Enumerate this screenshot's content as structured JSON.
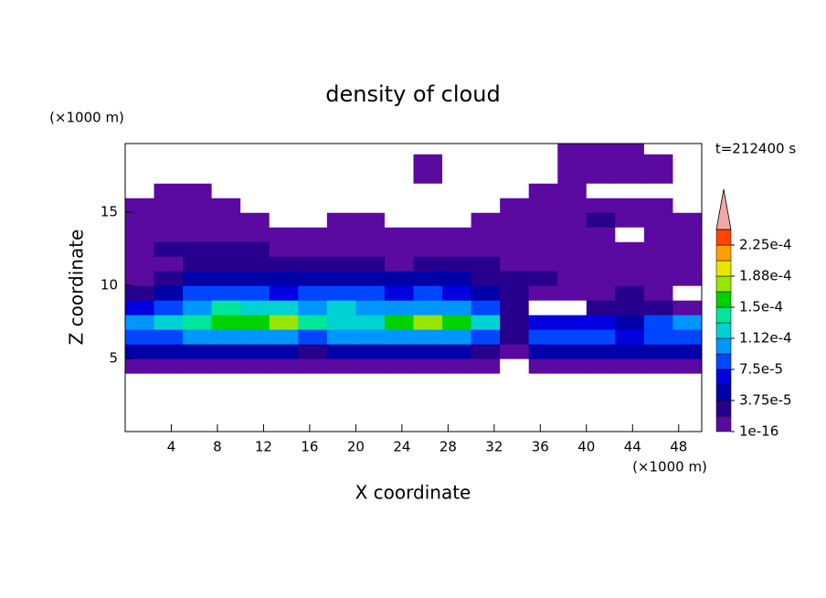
{
  "chart_data": {
    "type": "contour",
    "title": "density of cloud",
    "x_label": "X coordinate",
    "y_label": "Z coordinate",
    "x_unit": "(×1000 m)",
    "y_unit": "(×1000 m)",
    "time_label": "t=212400 s",
    "xlim": [
      0,
      50
    ],
    "ylim": [
      0,
      19.7
    ],
    "xticks": [
      4,
      8,
      12,
      16,
      20,
      24,
      28,
      32,
      36,
      40,
      44,
      48
    ],
    "yticks": [
      5,
      10,
      15
    ],
    "x": [
      1.25,
      3.75,
      6.25,
      8.75,
      11.25,
      13.75,
      16.25,
      18.75,
      21.25,
      23.75,
      26.25,
      28.75,
      31.25,
      33.75,
      36.25,
      38.75,
      41.25,
      43.75,
      46.25,
      48.75
    ],
    "y": [
      0.5,
      1.5,
      2.5,
      3.5,
      4.5,
      5.5,
      6.5,
      7.5,
      8.5,
      9.5,
      10.5,
      11.5,
      12.5,
      13.5,
      14.5,
      15.5,
      16.5,
      17.5,
      18.5,
      19.5
    ],
    "z": [
      [
        0,
        0,
        0,
        0,
        0,
        0,
        0,
        0,
        0,
        0,
        0,
        0,
        0,
        0,
        0,
        0,
        0,
        0,
        0,
        0
      ],
      [
        0,
        0,
        0,
        0,
        0,
        0,
        0,
        0,
        0,
        0,
        0,
        0,
        0,
        0,
        0,
        0,
        0,
        0,
        0,
        0
      ],
      [
        0,
        0,
        0,
        0,
        0,
        0,
        0,
        0,
        0,
        0,
        0,
        0,
        0,
        0,
        0,
        0,
        0,
        0,
        0,
        0
      ],
      [
        0,
        0,
        0,
        0,
        0,
        0,
        0,
        0,
        0,
        0,
        0,
        0,
        0,
        0,
        0,
        0,
        0,
        0,
        0,
        0
      ],
      [
        1e-05,
        1e-05,
        1e-05,
        1e-05,
        1e-05,
        1e-05,
        1e-05,
        1e-05,
        1e-05,
        1e-05,
        1e-05,
        1e-05,
        1e-05,
        0,
        1e-05,
        1e-05,
        1e-05,
        1e-05,
        1e-05,
        1e-05
      ],
      [
        4e-05,
        4e-05,
        4e-05,
        4e-05,
        4e-05,
        4e-05,
        3e-05,
        4e-05,
        4e-05,
        4e-05,
        4e-05,
        4e-05,
        3e-05,
        1e-05,
        4e-05,
        4e-05,
        4e-05,
        4e-05,
        4e-05,
        4e-05
      ],
      [
        8e-05,
        9e-05,
        0.0001,
        0.0001,
        0.0001,
        0.0001,
        8e-05,
        0.0001,
        0.0001,
        0.00011,
        0.0001,
        0.00011,
        8e-05,
        3e-05,
        8e-05,
        9e-05,
        8e-05,
        6e-05,
        8e-05,
        9e-05
      ],
      [
        0.0001,
        0.00012,
        0.00014,
        0.00015,
        0.00016,
        0.00017,
        0.00014,
        0.00013,
        0.00012,
        0.00016,
        0.00018,
        0.00016,
        0.00012,
        2e-05,
        6e-05,
        7e-05,
        6e-05,
        5e-05,
        8e-05,
        0.0001
      ],
      [
        6e-05,
        8e-05,
        0.0001,
        0.00014,
        0.00013,
        0.00012,
        0.00011,
        0.00013,
        0.0001,
        0.0001,
        0.00011,
        0.0001,
        8e-05,
        2e-05,
        0,
        0,
        2e-05,
        3e-05,
        2e-05,
        1e-05
      ],
      [
        3e-05,
        5e-05,
        8e-05,
        9e-05,
        8e-05,
        7e-05,
        8e-05,
        9e-05,
        8e-05,
        7e-05,
        8e-05,
        7e-05,
        5e-05,
        2e-05,
        1e-05,
        1e-05,
        1e-05,
        2e-05,
        1e-05,
        0
      ],
      [
        1e-05,
        2e-05,
        4e-05,
        5e-05,
        5e-05,
        4e-05,
        4e-05,
        5e-05,
        4e-05,
        4e-05,
        4e-05,
        5e-05,
        3e-05,
        2e-05,
        2e-05,
        1e-05,
        1e-05,
        1e-05,
        1e-05,
        1e-05
      ],
      [
        1e-05,
        1e-05,
        2e-05,
        2e-05,
        2e-05,
        2e-05,
        2e-05,
        2e-05,
        2e-05,
        1e-05,
        2e-05,
        2e-05,
        2e-05,
        1e-05,
        1e-05,
        1e-05,
        1e-05,
        1e-05,
        1e-05,
        1e-05
      ],
      [
        1e-05,
        2e-05,
        2e-05,
        2e-05,
        2e-05,
        1e-05,
        1e-05,
        1e-05,
        1e-05,
        1e-05,
        1e-05,
        1e-05,
        1e-05,
        1e-05,
        1e-05,
        1e-05,
        1e-05,
        1e-05,
        1e-05,
        1e-05
      ],
      [
        1e-05,
        1e-05,
        1e-05,
        1e-05,
        1e-05,
        1e-05,
        1e-05,
        1e-05,
        1e-05,
        1e-05,
        1e-05,
        1e-05,
        1e-05,
        1e-05,
        1e-05,
        1e-05,
        1e-05,
        0,
        1e-05,
        1e-05
      ],
      [
        1e-05,
        1e-05,
        1e-05,
        1e-05,
        1e-05,
        0,
        0,
        1e-05,
        1e-05,
        0,
        0,
        0,
        1e-05,
        1e-05,
        1e-05,
        1e-05,
        2e-05,
        1e-05,
        1e-05,
        1e-05
      ],
      [
        1e-05,
        1e-05,
        1e-05,
        1e-05,
        0,
        0,
        0,
        0,
        0,
        0,
        0,
        0,
        0,
        1e-05,
        1e-05,
        1e-05,
        1e-05,
        1e-05,
        1e-05,
        0
      ],
      [
        0,
        1e-05,
        1e-05,
        0,
        0,
        0,
        0,
        0,
        0,
        0,
        0,
        0,
        0,
        0,
        1e-05,
        1e-05,
        0,
        0,
        0,
        0
      ],
      [
        0,
        0,
        0,
        0,
        0,
        0,
        0,
        0,
        0,
        0,
        1e-05,
        0,
        0,
        0,
        0,
        1e-05,
        1e-05,
        1e-05,
        1e-05,
        0
      ],
      [
        0,
        0,
        0,
        0,
        0,
        0,
        0,
        0,
        0,
        0,
        1e-05,
        0,
        0,
        0,
        0,
        1e-05,
        1e-05,
        1e-05,
        1e-05,
        0
      ],
      [
        0,
        0,
        0,
        0,
        0,
        0,
        0,
        0,
        0,
        0,
        0,
        0,
        0,
        0,
        0,
        1e-05,
        1e-05,
        1e-05,
        0,
        0
      ]
    ],
    "levels": [
      1e-16,
      1.875e-05,
      3.75e-05,
      5.625e-05,
      7.5e-05,
      9.375e-05,
      0.000112,
      0.00013125,
      0.00015,
      0.00016875,
      0.000188,
      0.00020625,
      0.000225,
      0.00024375
    ],
    "colors": [
      "#5a0aa0",
      "#26008c",
      "#0000a8",
      "#0000e0",
      "#0046ff",
      "#0096ff",
      "#00d2d2",
      "#00e69a",
      "#00d200",
      "#96e600",
      "#e6e600",
      "#ffa000",
      "#ff4600"
    ],
    "extend_color": "#f4a6a6",
    "cbar_ticks": [
      {
        "value": 1e-16,
        "label": "1e-16"
      },
      {
        "value": 3.75e-05,
        "label": "3.75e-5"
      },
      {
        "value": 7.5e-05,
        "label": "7.5e-5"
      },
      {
        "value": 0.000112,
        "label": "1.12e-4"
      },
      {
        "value": 0.00015,
        "label": "1.5e-4"
      },
      {
        "value": 0.000188,
        "label": "1.88e-4"
      },
      {
        "value": 0.000225,
        "label": "2.25e-4"
      }
    ]
  }
}
